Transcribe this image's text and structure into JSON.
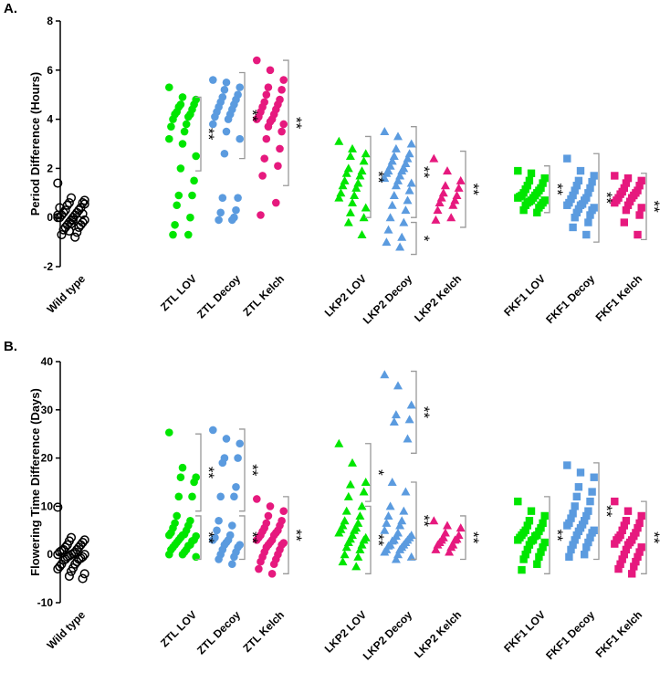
{
  "chart_data": [
    {
      "type": "scatter",
      "title": "A.",
      "y_label": "Period Difference (Hours)",
      "ylim": [
        -2,
        8
      ],
      "yticks": [
        -2,
        0,
        2,
        4,
        6,
        8
      ],
      "series": [
        {
          "name": "Wild type",
          "color": "#000000",
          "marker": "open-circle",
          "values": [
            1.4,
            0.8,
            0.7,
            0.6,
            0.6,
            0.5,
            0.4,
            0.3,
            0.3,
            0.2,
            0.2,
            0.1,
            0.1,
            0,
            0,
            0,
            -0.1,
            -0.1,
            -0.2,
            -0.2,
            -0.3,
            -0.3,
            -0.4,
            -0.4,
            -0.5,
            -0.6,
            -0.7,
            -0.8,
            0.4,
            -0.1,
            0.1,
            -0.25,
            0.55,
            -0.55,
            0.15
          ]
        },
        {
          "name": "ZTL LOV",
          "color": "#00e600",
          "marker": "circle",
          "values": [
            5.3,
            4.9,
            4.8,
            4.6,
            4.6,
            4.5,
            4.4,
            4.3,
            4.2,
            4.2,
            4.1,
            4.0,
            3.8,
            3.7,
            3.5,
            3.2,
            3.0,
            2.5,
            2.0,
            1.5,
            0.9,
            0.9,
            0.5,
            0,
            -0.3,
            -0.7,
            -0.7
          ]
        },
        {
          "name": "ZTL Decoy",
          "color": "#5b9bdf",
          "marker": "circle",
          "values": [
            5.6,
            5.5,
            5.3,
            5.2,
            5.0,
            4.9,
            4.8,
            4.7,
            4.6,
            4.5,
            4.4,
            4.3,
            4.2,
            4.1,
            4.0,
            3.8,
            3.5,
            3.2,
            2.6,
            0.8,
            0.8,
            0.3,
            0.2,
            0,
            -0.1,
            -0.1
          ]
        },
        {
          "name": "ZTL Kelch",
          "color": "#e6197e",
          "marker": "circle",
          "values": [
            6.4,
            6.0,
            5.6,
            5.3,
            5.2,
            5.0,
            4.8,
            4.7,
            4.6,
            4.5,
            4.4,
            4.3,
            4.2,
            4.1,
            4.0,
            4.0,
            3.9,
            3.8,
            3.7,
            3.5,
            3.2,
            2.8,
            2.4,
            2.1,
            1.7,
            0.6,
            0.1
          ]
        },
        {
          "name": "LKP2 LOV",
          "color": "#00e600",
          "marker": "triangle",
          "values": [
            3.1,
            2.8,
            2.6,
            2.5,
            2.3,
            2.0,
            1.9,
            1.8,
            1.7,
            1.5,
            1.4,
            1.3,
            1.2,
            1.0,
            0.9,
            0.8,
            0.6,
            0.4,
            0.2,
            0,
            -0.2,
            -0.7
          ]
        },
        {
          "name": "LKP2 Decoy",
          "color": "#5b9bdf",
          "marker": "triangle",
          "values": [
            3.5,
            3.3,
            3.0,
            2.8,
            2.6,
            2.5,
            2.4,
            2.3,
            2.2,
            2.1,
            2.0,
            1.9,
            1.9,
            1.8,
            1.7,
            1.6,
            1.5,
            1.4,
            1.3,
            1.1,
            0.9,
            0.7,
            0.5,
            0.3,
            0,
            -0.2,
            -0.5,
            -0.8,
            -1.0,
            -1.2
          ]
        },
        {
          "name": "LKP2 Kelch",
          "color": "#e6197e",
          "marker": "triangle",
          "values": [
            2.4,
            1.9,
            1.5,
            1.3,
            1.2,
            1.0,
            0.9,
            0.8,
            0.7,
            0.6,
            0.5,
            0.3,
            0,
            -0.1
          ]
        },
        {
          "name": "FKF1 LOV",
          "color": "#00e600",
          "marker": "square",
          "values": [
            1.9,
            1.8,
            1.6,
            1.5,
            1.4,
            1.3,
            1.2,
            1.15,
            1.1,
            1.0,
            1.0,
            0.9,
            0.9,
            0.85,
            0.8,
            0.8,
            0.7,
            0.7,
            0.65,
            0.6,
            0.6,
            0.5,
            0.5,
            0.4,
            0.3,
            0.2
          ]
        },
        {
          "name": "FKF1 Decoy",
          "color": "#5b9bdf",
          "marker": "square",
          "values": [
            2.4,
            1.9,
            1.7,
            1.5,
            1.45,
            1.3,
            1.2,
            1.1,
            1.0,
            0.9,
            0.8,
            0.75,
            0.7,
            0.6,
            0.55,
            0.5,
            0.5,
            0.4,
            0.35,
            0.3,
            0.2,
            0.1,
            0,
            -0.2,
            -0.4,
            -0.7
          ]
        },
        {
          "name": "FKF1 Kelch",
          "color": "#e6197e",
          "marker": "square",
          "values": [
            1.7,
            1.6,
            1.5,
            1.4,
            1.3,
            1.2,
            1.1,
            1.05,
            1.0,
            0.95,
            0.9,
            0.8,
            0.8,
            0.7,
            0.65,
            0.6,
            0.5,
            0.4,
            0.3,
            0.1,
            -0.2,
            -0.7
          ]
        }
      ],
      "annotations": [
        {
          "series": "ZTL LOV",
          "text": "**",
          "range": [
            1.9,
            4.9
          ]
        },
        {
          "series": "ZTL Decoy",
          "text": "**",
          "range": [
            2.4,
            5.9
          ]
        },
        {
          "series": "ZTL Kelch",
          "text": "**",
          "range": [
            1.3,
            6.4
          ]
        },
        {
          "series": "LKP2 LOV",
          "text": "**",
          "range": [
            0,
            3.3
          ]
        },
        {
          "series": "LKP2 Decoy",
          "text": "**",
          "range": [
            0,
            3.7
          ]
        },
        {
          "series": "LKP2 Decoy",
          "text": "*",
          "range": [
            -1.5,
            -0.2
          ]
        },
        {
          "series": "LKP2 Kelch",
          "text": "**",
          "range": [
            -0.4,
            2.7
          ]
        },
        {
          "series": "FKF1 LOV",
          "text": "**",
          "range": [
            0.2,
            2.1
          ]
        },
        {
          "series": "FKF1 Decoy",
          "text": "**",
          "range": [
            -1.0,
            2.6
          ]
        },
        {
          "series": "FKF1 Kelch",
          "text": "**",
          "range": [
            -0.9,
            1.8
          ]
        }
      ]
    },
    {
      "type": "scatter",
      "title": "B.",
      "y_label": "Flowering Time Difference (Days)",
      "ylim": [
        -10,
        40
      ],
      "yticks": [
        -10,
        0,
        10,
        20,
        30,
        40
      ],
      "series": [
        {
          "name": "Wild type",
          "color": "#000000",
          "marker": "open-circle",
          "values": [
            9.8,
            3.5,
            3,
            2.8,
            2.5,
            2,
            2,
            1.5,
            1.5,
            1,
            1,
            0.8,
            0.5,
            0.5,
            0.2,
            0,
            0,
            0,
            -0.3,
            -0.5,
            -0.5,
            -0.8,
            -1,
            -1,
            -1.2,
            -1.5,
            -2,
            -2,
            -2.5,
            -2.8,
            -3,
            -3.5,
            -4,
            -4.5,
            -5
          ]
        },
        {
          "name": "ZTL LOV",
          "color": "#00e600",
          "marker": "circle",
          "values": [
            25.3,
            18,
            16,
            16,
            15,
            12,
            12,
            8,
            7,
            6.5,
            6,
            5.5,
            5,
            4.5,
            4.2,
            4,
            4,
            3.8,
            3.5,
            3,
            3,
            2.8,
            2.5,
            2,
            2,
            1.8,
            1.5,
            1,
            1,
            0.5,
            0,
            0,
            -0.5
          ]
        },
        {
          "name": "ZTL Decoy",
          "color": "#5b9bdf",
          "marker": "circle",
          "values": [
            25.8,
            24,
            23,
            20,
            20,
            19,
            14,
            12,
            12,
            7,
            6,
            5,
            4,
            3.5,
            3,
            3,
            2.5,
            2,
            2,
            1.5,
            1,
            0.5,
            0,
            -0.5,
            -1,
            -2
          ]
        },
        {
          "name": "ZTL Kelch",
          "color": "#e6197e",
          "marker": "circle",
          "values": [
            11.5,
            10,
            9,
            8,
            7,
            6.5,
            6,
            5.5,
            5,
            4.8,
            4.5,
            4,
            4,
            3.5,
            3,
            3,
            2.5,
            2.4,
            2,
            2,
            1.5,
            1,
            0.5,
            0,
            -0.5,
            -1,
            -1.5,
            -2,
            -3,
            -4
          ]
        },
        {
          "name": "LKP2 LOV",
          "color": "#00e600",
          "marker": "triangle",
          "values": [
            23,
            19,
            15,
            14.5,
            13,
            12,
            10,
            9,
            8,
            7,
            6.5,
            6,
            5.5,
            5.2,
            5,
            4.5,
            4,
            3.5,
            3.2,
            3,
            2.5,
            2,
            1.5,
            1,
            0,
            -0.5,
            -1.5,
            -2.5
          ]
        },
        {
          "name": "LKP2 Decoy",
          "color": "#5b9bdf",
          "marker": "triangle",
          "values": [
            37.3,
            35,
            31,
            29,
            28,
            27.5,
            24,
            15,
            13,
            10,
            9,
            8,
            7,
            6.5,
            6,
            5,
            4.5,
            4,
            3.8,
            3.5,
            3,
            3,
            2.8,
            2.5,
            2,
            2,
            1.8,
            1.5,
            1,
            1,
            0.5,
            0,
            -0.5,
            -1
          ]
        },
        {
          "name": "LKP2 Kelch",
          "color": "#e6197e",
          "marker": "triangle",
          "values": [
            7,
            6,
            5.5,
            4.5,
            4,
            3.5,
            3.2,
            3,
            3,
            2.5,
            2,
            2,
            1.5,
            1,
            0.5
          ]
        },
        {
          "name": "FKF1 LOV",
          "color": "#00e600",
          "marker": "square",
          "values": [
            11,
            9,
            8,
            7,
            6.5,
            6,
            5.5,
            5,
            4.8,
            4.5,
            4,
            4,
            3.8,
            3.5,
            3,
            3,
            2.8,
            2.5,
            2,
            1.5,
            1,
            0.5,
            0,
            -0.5,
            -1,
            -2,
            -3.2
          ]
        },
        {
          "name": "FKF1 Decoy",
          "color": "#5b9bdf",
          "marker": "square",
          "values": [
            18.5,
            17,
            16,
            14,
            13,
            12,
            11,
            10,
            9,
            8.5,
            8,
            7.5,
            7,
            6.5,
            6.2,
            6,
            5.5,
            5,
            4.8,
            4.5,
            4,
            3.5,
            3,
            2.5,
            2,
            1.5,
            1,
            0,
            -0.5
          ]
        },
        {
          "name": "FKF1 Kelch",
          "color": "#e6197e",
          "marker": "square",
          "values": [
            11,
            9,
            8,
            7,
            6.5,
            6,
            5.5,
            5,
            4.5,
            4,
            3.8,
            3.5,
            3,
            3,
            2.5,
            2.2,
            2,
            1.5,
            1,
            0.5,
            0,
            -0.5,
            -1,
            -1.5,
            -2,
            -2.5,
            -3,
            -4
          ]
        }
      ],
      "annotations": [
        {
          "series": "ZTL LOV",
          "text": "**",
          "range": [
            9,
            25
          ]
        },
        {
          "series": "ZTL LOV",
          "text": "**",
          "range": [
            -1,
            8
          ]
        },
        {
          "series": "ZTL Decoy",
          "text": "**",
          "range": [
            9,
            26
          ]
        },
        {
          "series": "ZTL Decoy",
          "text": "**",
          "range": [
            -1,
            8
          ]
        },
        {
          "series": "ZTL Kelch",
          "text": "**",
          "range": [
            -4,
            12
          ]
        },
        {
          "series": "LKP2 LOV",
          "text": "*",
          "range": [
            11,
            23
          ]
        },
        {
          "series": "LKP2 LOV",
          "text": "**",
          "range": [
            -4,
            10
          ]
        },
        {
          "series": "LKP2 Decoy",
          "text": "**",
          "range": [
            21,
            38
          ]
        },
        {
          "series": "LKP2 Decoy",
          "text": "**",
          "range": [
            -1,
            15
          ]
        },
        {
          "series": "LKP2 Kelch",
          "text": "**",
          "range": [
            -1,
            8
          ]
        },
        {
          "series": "FKF1 LOV",
          "text": "**",
          "range": [
            -4,
            12
          ]
        },
        {
          "series": "FKF1 Decoy",
          "text": "**",
          "range": [
            -1,
            19
          ]
        },
        {
          "series": "FKF1 Kelch",
          "text": "**",
          "range": [
            -4,
            11
          ]
        }
      ]
    }
  ]
}
